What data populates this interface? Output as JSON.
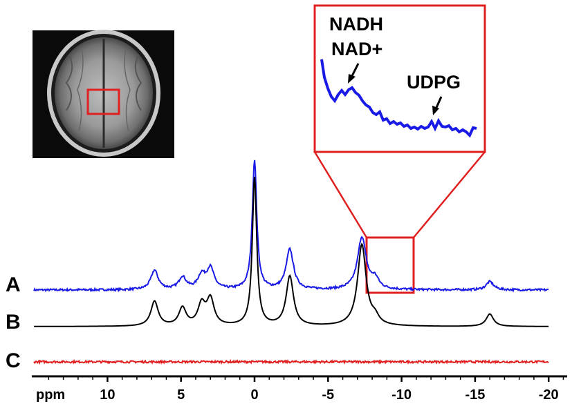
{
  "chart_data": {
    "type": "line",
    "x_axis": {
      "unit_label": "ppm",
      "reversed": true,
      "range": [
        14.5,
        -21.5
      ],
      "ticks": [
        10,
        5,
        0,
        -5,
        -10,
        -15,
        -20
      ],
      "tick_labels": [
        "10",
        "5",
        "0",
        "-5",
        "-10",
        "-15",
        "-20"
      ]
    },
    "y_axis": {
      "visible": false
    },
    "grid": false,
    "legend": "none",
    "trace_labels": [
      "A",
      "B",
      "C"
    ],
    "traces": [
      {
        "label": "A",
        "kind": "in vivo spectrum (noisy)",
        "color": "#1a1ae6",
        "baseline_offset": 0,
        "peaks": [
          {
            "ppm": 6.8,
            "height": 28
          },
          {
            "ppm": 4.9,
            "height": 18
          },
          {
            "ppm": 3.6,
            "height": 20
          },
          {
            "ppm": 3.0,
            "height": 30
          },
          {
            "ppm": 0.0,
            "height": 188
          },
          {
            "ppm": -2.4,
            "height": 58
          },
          {
            "ppm": -7.3,
            "height": 76
          },
          {
            "ppm": -8.2,
            "height": 14
          },
          {
            "ppm": -16.0,
            "height": 12
          }
        ]
      },
      {
        "label": "B",
        "kind": "fitted spectrum",
        "color": "#000000",
        "baseline_offset": 0,
        "peaks": [
          {
            "ppm": 6.8,
            "height": 36
          },
          {
            "ppm": 4.9,
            "height": 26
          },
          {
            "ppm": 3.6,
            "height": 30
          },
          {
            "ppm": 3.0,
            "height": 38
          },
          {
            "ppm": 0.0,
            "height": 215
          },
          {
            "ppm": -2.4,
            "height": 72
          },
          {
            "ppm": -7.3,
            "height": 118
          },
          {
            "ppm": -8.2,
            "height": 10
          },
          {
            "ppm": -16.0,
            "height": 18
          }
        ]
      },
      {
        "label": "C",
        "kind": "residual",
        "color": "#e02020",
        "baseline_offset": 0,
        "peaks": []
      }
    ],
    "inset": {
      "zoom_range_ppm": [
        -7.6,
        -10.6
      ],
      "annotations": [
        {
          "text": "NADH",
          "ppm": -8.3
        },
        {
          "text": "NAD+",
          "ppm": -8.3
        },
        {
          "text": "UDPG",
          "ppm": -10.1
        }
      ]
    }
  },
  "image_inset": {
    "kind": "axial brain MRI with voxel box",
    "box_color": "#e02020"
  }
}
